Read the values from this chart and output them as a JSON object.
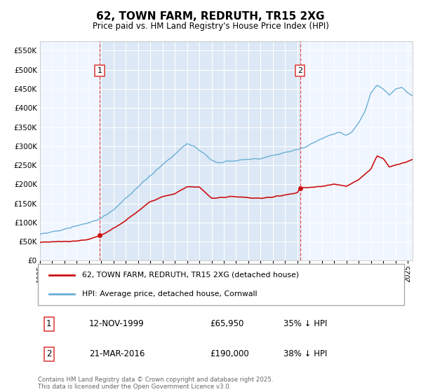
{
  "title": "62, TOWN FARM, REDRUTH, TR15 2XG",
  "subtitle": "Price paid vs. HM Land Registry's House Price Index (HPI)",
  "xlim": [
    1995.0,
    2025.4
  ],
  "ylim": [
    0,
    575000
  ],
  "yticks": [
    0,
    50000,
    100000,
    150000,
    200000,
    250000,
    300000,
    350000,
    400000,
    450000,
    500000,
    550000
  ],
  "background_color": "#dce8f5",
  "shaded_bg": "#dce8f5",
  "outer_bg": "#f0f6ff",
  "grid_color": "#ffffff",
  "hpi_color": "#6aaed6",
  "price_color": "#cc1111",
  "vline_color": "#dd4444",
  "transaction1": {
    "date": "12-NOV-1999",
    "price": 65950,
    "label": "1",
    "year": 1999.87,
    "hpi_pct": "35% ↓ HPI"
  },
  "transaction2": {
    "date": "21-MAR-2016",
    "price": 190000,
    "label": "2",
    "year": 2016.22,
    "hpi_pct": "38% ↓ HPI"
  },
  "legend_label_price": "62, TOWN FARM, REDRUTH, TR15 2XG (detached house)",
  "legend_label_hpi": "HPI: Average price, detached house, Cornwall",
  "footnote": "Contains HM Land Registry data © Crown copyright and database right 2025.\nThis data is licensed under the Open Government Licence v3.0.",
  "xtick_years": [
    1995,
    1996,
    1997,
    1998,
    1999,
    2000,
    2001,
    2002,
    2003,
    2004,
    2005,
    2006,
    2007,
    2008,
    2009,
    2010,
    2011,
    2012,
    2013,
    2014,
    2015,
    2016,
    2017,
    2018,
    2019,
    2020,
    2021,
    2022,
    2023,
    2024,
    2025
  ],
  "hpi_anchors_t": [
    1995.0,
    1995.5,
    1996.0,
    1996.5,
    1997.0,
    1997.5,
    1998.0,
    1998.5,
    1999.0,
    1999.5,
    2000.0,
    2000.5,
    2001.0,
    2001.5,
    2002.0,
    2002.5,
    2003.0,
    2003.5,
    2004.0,
    2004.5,
    2005.0,
    2005.5,
    2006.0,
    2006.5,
    2007.0,
    2007.5,
    2008.0,
    2008.5,
    2009.0,
    2009.5,
    2010.0,
    2010.5,
    2011.0,
    2011.5,
    2012.0,
    2012.5,
    2013.0,
    2013.5,
    2014.0,
    2014.5,
    2015.0,
    2015.5,
    2016.0,
    2016.5,
    2017.0,
    2017.5,
    2018.0,
    2018.5,
    2019.0,
    2019.5,
    2020.0,
    2020.5,
    2021.0,
    2021.5,
    2022.0,
    2022.5,
    2023.0,
    2023.5,
    2024.0,
    2024.5,
    2025.0,
    2025.4
  ],
  "hpi_anchors_v": [
    70000,
    72000,
    75000,
    78000,
    82000,
    86000,
    90000,
    95000,
    100000,
    105000,
    112000,
    122000,
    133000,
    148000,
    163000,
    178000,
    192000,
    208000,
    222000,
    238000,
    252000,
    265000,
    278000,
    295000,
    305000,
    300000,
    290000,
    278000,
    262000,
    255000,
    258000,
    261000,
    263000,
    264000,
    265000,
    266000,
    268000,
    272000,
    276000,
    280000,
    283000,
    287000,
    291000,
    296000,
    303000,
    312000,
    320000,
    327000,
    333000,
    337000,
    330000,
    340000,
    362000,
    390000,
    440000,
    460000,
    450000,
    435000,
    448000,
    455000,
    440000,
    430000
  ],
  "price_anchors_t": [
    1995.0,
    1996.0,
    1997.0,
    1998.0,
    1999.0,
    1999.87,
    2000.5,
    2001.0,
    2002.0,
    2003.0,
    2004.0,
    2005.0,
    2006.0,
    2007.0,
    2008.0,
    2009.0,
    2010.0,
    2011.0,
    2012.0,
    2013.0,
    2014.0,
    2015.0,
    2016.0,
    2016.22,
    2017.0,
    2018.0,
    2019.0,
    2020.0,
    2021.0,
    2022.0,
    2022.5,
    2023.0,
    2023.5,
    2024.0,
    2024.5,
    2025.0,
    2025.4
  ],
  "price_anchors_v": [
    48000,
    49000,
    50000,
    52000,
    56000,
    65950,
    75000,
    85000,
    105000,
    130000,
    155000,
    168000,
    175000,
    193000,
    193000,
    163000,
    165000,
    168000,
    165000,
    163000,
    167000,
    172000,
    178000,
    190000,
    192000,
    195000,
    200000,
    195000,
    212000,
    240000,
    275000,
    268000,
    245000,
    250000,
    255000,
    260000,
    265000
  ]
}
